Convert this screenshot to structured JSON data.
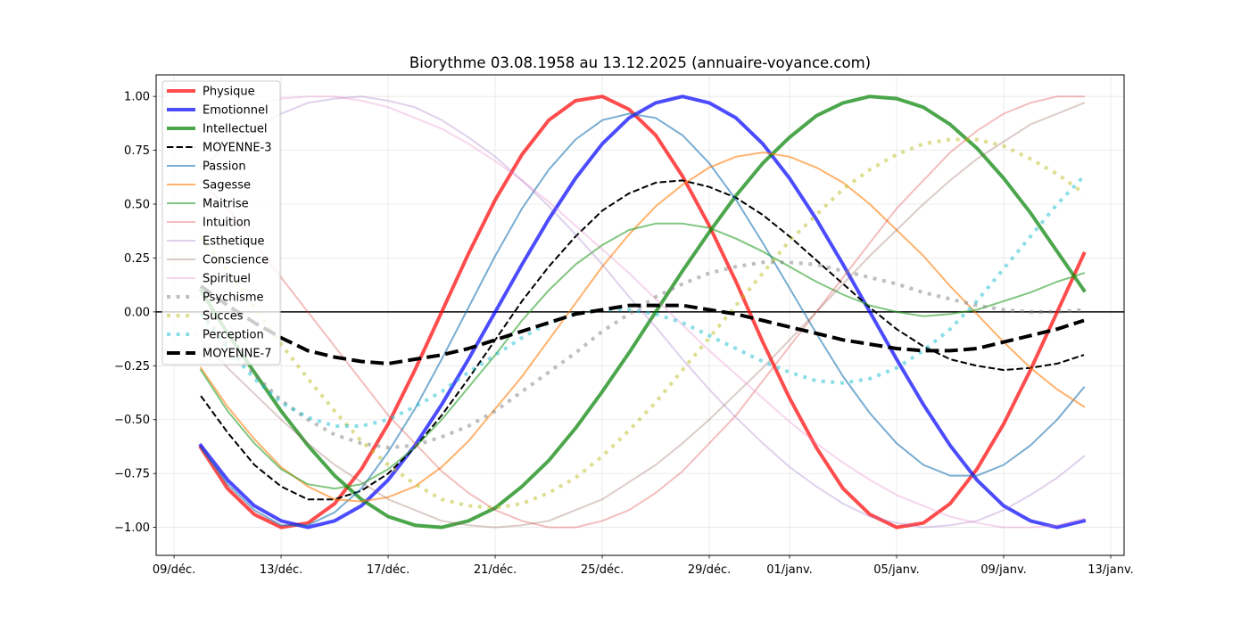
{
  "chart_data": {
    "type": "line",
    "title": "Biorythme 03.08.1958 au 13.12.2025 (annuaire-voyance.com)",
    "xlabel": "",
    "ylabel": "",
    "x": [
      1,
      2,
      3,
      4,
      5,
      6,
      7,
      8,
      9,
      10,
      11,
      12,
      13,
      14,
      15,
      16,
      17,
      18,
      19,
      20,
      21,
      22,
      23,
      24,
      25,
      26,
      27,
      28,
      29,
      30,
      31,
      32,
      33,
      34
    ],
    "x_ticks": [
      0,
      4,
      8,
      12,
      16,
      20,
      23,
      27,
      31,
      35
    ],
    "x_tick_labels": [
      "09/déc.",
      "13/déc.",
      "17/déc.",
      "21/déc.",
      "25/déc.",
      "29/déc.",
      "01/janv.",
      "05/janv.",
      "09/janv.",
      "13/janv."
    ],
    "xlim": [
      -0.67,
      35.5
    ],
    "ylim": [
      -1.13,
      1.1
    ],
    "y_ticks": [
      1.0,
      0.75,
      0.5,
      0.25,
      0.0,
      -0.25,
      -0.5,
      -0.75,
      -1.0
    ],
    "y_tick_labels": [
      "1.00",
      "0.75",
      "0.50",
      "0.25",
      "0.00",
      "−0.25",
      "−0.50",
      "−0.75",
      "−1.00"
    ],
    "grid": true,
    "reference_line_y": 0,
    "legend_position": "upper-left",
    "series": [
      {
        "name": "Physique",
        "color": "#ff0000",
        "values": [
          -0.63,
          -0.82,
          -0.94,
          -1.0,
          -0.98,
          -0.89,
          -0.73,
          -0.52,
          -0.27,
          0.0,
          0.27,
          0.52,
          0.73,
          0.89,
          0.98,
          1.0,
          0.94,
          0.82,
          0.63,
          0.4,
          0.14,
          -0.14,
          -0.4,
          -0.63,
          -0.82,
          -0.94,
          -1.0,
          -0.98,
          -0.89,
          -0.73,
          -0.52,
          -0.27,
          0.0,
          0.27
        ]
      },
      {
        "name": "Emotionnel",
        "color": "#0000ff",
        "values": [
          -0.62,
          -0.78,
          -0.9,
          -0.97,
          -1.0,
          -0.97,
          -0.9,
          -0.78,
          -0.62,
          -0.43,
          -0.22,
          0.0,
          0.22,
          0.43,
          0.62,
          0.78,
          0.9,
          0.97,
          1.0,
          0.97,
          0.9,
          0.78,
          0.62,
          0.43,
          0.22,
          0.0,
          -0.22,
          -0.43,
          -0.62,
          -0.78,
          -0.9,
          -0.97,
          -1.0,
          -0.97
        ]
      },
      {
        "name": "Intellectuel",
        "color": "#008000",
        "values": [
          0.1,
          -0.1,
          -0.28,
          -0.46,
          -0.62,
          -0.76,
          -0.87,
          -0.95,
          -0.99,
          -1.0,
          -0.97,
          -0.91,
          -0.81,
          -0.69,
          -0.54,
          -0.37,
          -0.19,
          0.0,
          0.19,
          0.37,
          0.54,
          0.69,
          0.81,
          0.91,
          0.97,
          1.0,
          0.99,
          0.95,
          0.87,
          0.76,
          0.62,
          0.46,
          0.28,
          0.1
        ]
      },
      {
        "name": "MOYENNE-3",
        "color": "#000000",
        "values": [
          -0.39,
          -0.56,
          -0.71,
          -0.81,
          -0.87,
          -0.87,
          -0.83,
          -0.75,
          -0.63,
          -0.48,
          -0.31,
          -0.13,
          0.05,
          0.21,
          0.35,
          0.47,
          0.55,
          0.6,
          0.61,
          0.58,
          0.53,
          0.45,
          0.35,
          0.24,
          0.13,
          0.02,
          -0.08,
          -0.16,
          -0.22,
          -0.25,
          -0.27,
          -0.26,
          -0.24,
          -0.2
        ]
      },
      {
        "name": "Passion",
        "color": "#1f77b4",
        "values": [
          -0.63,
          -0.8,
          -0.92,
          -0.99,
          -0.99,
          -0.93,
          -0.82,
          -0.65,
          -0.45,
          -0.22,
          0.02,
          0.26,
          0.48,
          0.66,
          0.8,
          0.89,
          0.92,
          0.9,
          0.82,
          0.69,
          0.52,
          0.32,
          0.11,
          -0.1,
          -0.3,
          -0.47,
          -0.61,
          -0.71,
          -0.76,
          -0.76,
          -0.71,
          -0.62,
          -0.5,
          -0.35
        ]
      },
      {
        "name": "Sagesse",
        "color": "#ff7f0e",
        "values": [
          -0.26,
          -0.44,
          -0.59,
          -0.72,
          -0.81,
          -0.87,
          -0.88,
          -0.86,
          -0.81,
          -0.72,
          -0.6,
          -0.45,
          -0.3,
          -0.13,
          0.04,
          0.21,
          0.36,
          0.49,
          0.59,
          0.67,
          0.72,
          0.74,
          0.72,
          0.67,
          0.6,
          0.5,
          0.38,
          0.26,
          0.12,
          -0.01,
          -0.14,
          -0.26,
          -0.36,
          -0.44
        ]
      },
      {
        "name": "Maitrise",
        "color": "#2ca02c",
        "values": [
          -0.27,
          -0.46,
          -0.61,
          -0.73,
          -0.8,
          -0.82,
          -0.8,
          -0.73,
          -0.63,
          -0.5,
          -0.35,
          -0.2,
          -0.04,
          0.1,
          0.22,
          0.31,
          0.38,
          0.41,
          0.41,
          0.39,
          0.34,
          0.28,
          0.21,
          0.14,
          0.08,
          0.03,
          0.0,
          -0.02,
          -0.01,
          0.01,
          0.05,
          0.09,
          0.14,
          0.18
        ]
      },
      {
        "name": "Intuition",
        "color": "#d62728",
        "values": [
          0.61,
          0.48,
          0.32,
          0.16,
          0.0,
          -0.16,
          -0.32,
          -0.48,
          -0.61,
          -0.74,
          -0.84,
          -0.92,
          -0.97,
          -1.0,
          -1.0,
          -0.97,
          -0.92,
          -0.84,
          -0.74,
          -0.61,
          -0.48,
          -0.32,
          -0.16,
          0.0,
          0.16,
          0.32,
          0.48,
          0.61,
          0.74,
          0.84,
          0.92,
          0.97,
          1.0,
          1.0
        ]
      },
      {
        "name": "Esthetique",
        "color": "#9467bd",
        "values": [
          0.67,
          0.77,
          0.85,
          0.92,
          0.97,
          0.99,
          1.0,
          0.98,
          0.95,
          0.89,
          0.81,
          0.72,
          0.61,
          0.49,
          0.36,
          0.22,
          0.07,
          -0.07,
          -0.22,
          -0.36,
          -0.49,
          -0.61,
          -0.72,
          -0.81,
          -0.89,
          -0.95,
          -0.98,
          -1.0,
          -0.99,
          -0.97,
          -0.92,
          -0.85,
          -0.77,
          -0.67
        ]
      },
      {
        "name": "Conscience",
        "color": "#8c564b",
        "values": [
          -0.13,
          -0.26,
          -0.38,
          -0.5,
          -0.61,
          -0.71,
          -0.79,
          -0.87,
          -0.92,
          -0.97,
          -0.99,
          -1.0,
          -0.99,
          -0.97,
          -0.92,
          -0.87,
          -0.79,
          -0.71,
          -0.61,
          -0.5,
          -0.38,
          -0.26,
          -0.13,
          0.0,
          0.13,
          0.26,
          0.38,
          0.5,
          0.61,
          0.71,
          0.79,
          0.87,
          0.92,
          0.97
        ]
      },
      {
        "name": "Spirituel",
        "color": "#e377c2",
        "values": [
          0.88,
          0.93,
          0.96,
          0.99,
          1.0,
          1.0,
          0.98,
          0.95,
          0.9,
          0.85,
          0.78,
          0.7,
          0.61,
          0.51,
          0.4,
          0.29,
          0.18,
          0.06,
          -0.06,
          -0.18,
          -0.29,
          -0.4,
          -0.51,
          -0.61,
          -0.7,
          -0.78,
          -0.85,
          -0.9,
          -0.95,
          -0.98,
          -1.0,
          -1.0,
          -0.99,
          -0.96
        ]
      },
      {
        "name": "Psychisme",
        "color": "#7f7f7f",
        "values": [
          0.0,
          -0.15,
          -0.29,
          -0.41,
          -0.5,
          -0.57,
          -0.61,
          -0.63,
          -0.62,
          -0.58,
          -0.53,
          -0.46,
          -0.37,
          -0.28,
          -0.19,
          -0.09,
          -0.01,
          0.07,
          0.13,
          0.18,
          0.21,
          0.23,
          0.23,
          0.22,
          0.19,
          0.16,
          0.13,
          0.09,
          0.06,
          0.03,
          0.01,
          0.0,
          0.0,
          0.01
        ]
      },
      {
        "name": "Succes",
        "color": "#bcbd22",
        "values": [
          0.35,
          0.19,
          0.02,
          -0.15,
          -0.31,
          -0.46,
          -0.6,
          -0.71,
          -0.8,
          -0.87,
          -0.9,
          -0.91,
          -0.89,
          -0.84,
          -0.77,
          -0.67,
          -0.55,
          -0.42,
          -0.27,
          -0.12,
          0.03,
          0.18,
          0.33,
          0.45,
          0.57,
          0.66,
          0.73,
          0.78,
          0.8,
          0.8,
          0.77,
          0.71,
          0.64,
          0.55
        ]
      },
      {
        "name": "Perception",
        "color": "#17becf",
        "values": [
          -0.01,
          -0.17,
          -0.31,
          -0.42,
          -0.49,
          -0.53,
          -0.53,
          -0.5,
          -0.44,
          -0.37,
          -0.28,
          -0.2,
          -0.12,
          -0.05,
          -0.01,
          0.01,
          0.01,
          -0.01,
          -0.05,
          -0.11,
          -0.17,
          -0.23,
          -0.28,
          -0.32,
          -0.33,
          -0.31,
          -0.26,
          -0.18,
          -0.08,
          0.05,
          0.2,
          0.35,
          0.5,
          0.63
        ]
      },
      {
        "name": "MOYENNE-7",
        "color": "#000000",
        "values": [
          0.12,
          0.03,
          -0.05,
          -0.12,
          -0.18,
          -0.21,
          -0.23,
          -0.24,
          -0.22,
          -0.2,
          -0.17,
          -0.13,
          -0.09,
          -0.05,
          -0.01,
          0.01,
          0.03,
          0.03,
          0.03,
          0.01,
          -0.01,
          -0.04,
          -0.07,
          -0.1,
          -0.13,
          -0.15,
          -0.17,
          -0.18,
          -0.18,
          -0.17,
          -0.14,
          -0.11,
          -0.08,
          -0.04
        ]
      }
    ]
  }
}
